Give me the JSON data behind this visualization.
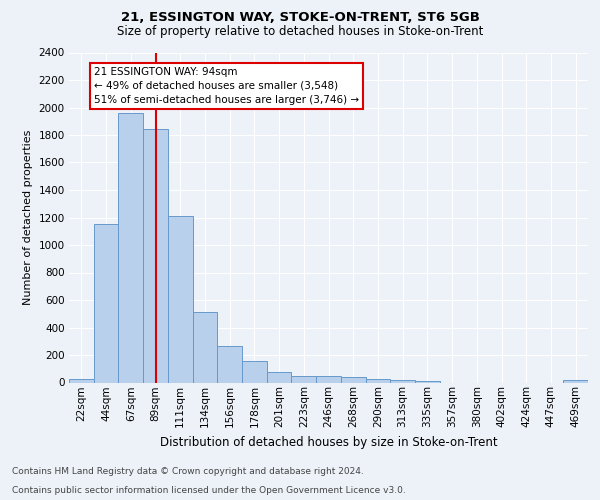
{
  "title_line1": "21, ESSINGTON WAY, STOKE-ON-TRENT, ST6 5GB",
  "title_line2": "Size of property relative to detached houses in Stoke-on-Trent",
  "xlabel": "Distribution of detached houses by size in Stoke-on-Trent",
  "ylabel": "Number of detached properties",
  "footnote1": "Contains HM Land Registry data © Crown copyright and database right 2024.",
  "footnote2": "Contains public sector information licensed under the Open Government Licence v3.0.",
  "bar_labels": [
    "22sqm",
    "44sqm",
    "67sqm",
    "89sqm",
    "111sqm",
    "134sqm",
    "156sqm",
    "178sqm",
    "201sqm",
    "223sqm",
    "246sqm",
    "268sqm",
    "290sqm",
    "313sqm",
    "335sqm",
    "357sqm",
    "380sqm",
    "402sqm",
    "424sqm",
    "447sqm",
    "469sqm"
  ],
  "bar_values": [
    28,
    1150,
    1960,
    1840,
    1210,
    515,
    265,
    155,
    80,
    50,
    45,
    40,
    22,
    18,
    13,
    0,
    0,
    0,
    0,
    0,
    18
  ],
  "bar_color": "#b8d0eb",
  "bar_edge_color": "#6699cc",
  "annotation_line1": "21 ESSINGTON WAY: 94sqm",
  "annotation_line2": "← 49% of detached houses are smaller (3,548)",
  "annotation_line3": "51% of semi-detached houses are larger (3,746) →",
  "vline_color": "#dd0000",
  "vline_position": 3.0,
  "ylim_max": 2400,
  "ytick_step": 200,
  "background_color": "#edf2f9",
  "grid_color": "#ffffff",
  "title1_fontsize": 9.5,
  "title2_fontsize": 8.5,
  "ylabel_fontsize": 8,
  "xlabel_fontsize": 8.5,
  "tick_fontsize": 7.5,
  "footnote_fontsize": 6.5
}
